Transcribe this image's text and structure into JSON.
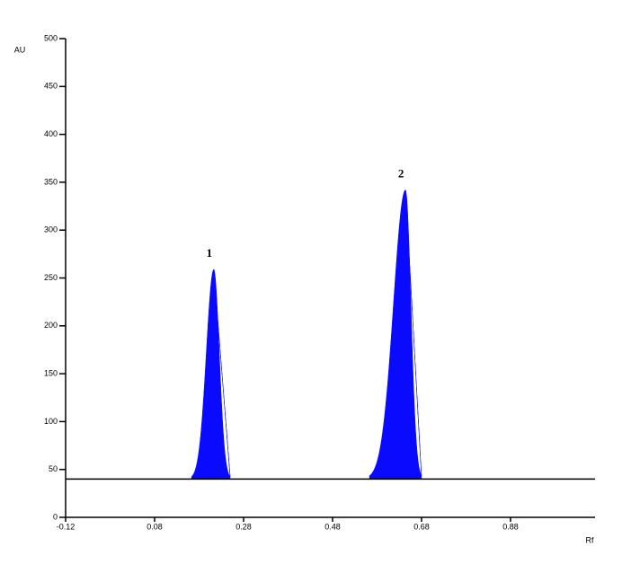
{
  "chart_data": {
    "type": "chromatogram",
    "y_label": "AU",
    "x_label": "Rf",
    "xlim": [
      -0.12,
      1.07
    ],
    "ylim": [
      0,
      500
    ],
    "xticks": [
      -0.12,
      0.08,
      0.28,
      0.48,
      0.68,
      0.88
    ],
    "yticks": [
      0,
      50,
      100,
      150,
      200,
      250,
      300,
      350,
      400,
      450,
      500
    ],
    "baseline": 40,
    "color": "#0a0aff",
    "peaks": [
      {
        "label": "1",
        "rf": 0.213,
        "height": 259,
        "start": 0.163,
        "end": 0.25
      },
      {
        "label": "2",
        "rf": 0.644,
        "height": 342,
        "start": 0.563,
        "end": 0.68
      }
    ]
  }
}
